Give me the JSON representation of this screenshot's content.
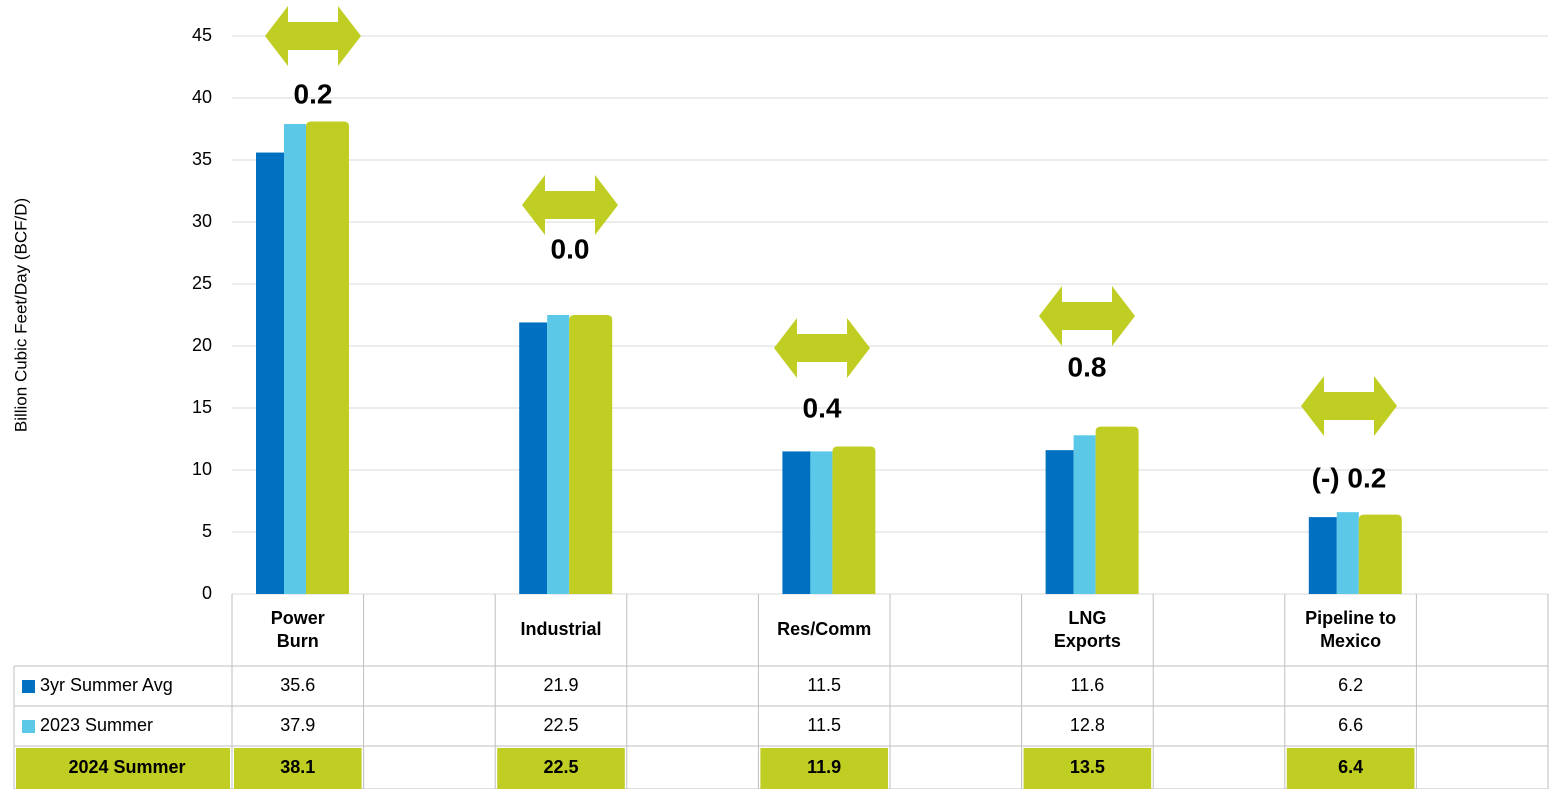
{
  "chart_data": {
    "type": "bar",
    "y_axis_label": "Billion Cubic Feet/Day (BCF/D)",
    "categories": [
      "Power\nBurn",
      "Industrial",
      "Res/Comm",
      "LNG\nExports",
      "Pipeline to\nMexico"
    ],
    "series": [
      {
        "name": "3yr Summer Avg",
        "color": "#0070c0",
        "values": [
          35.6,
          21.9,
          11.5,
          11.6,
          6.2
        ]
      },
      {
        "name": "2023 Summer",
        "color": "#5bc8e8",
        "values": [
          37.9,
          22.5,
          11.5,
          12.8,
          6.6
        ]
      },
      {
        "name": "2024 Summer",
        "color": "#c0cd22",
        "values": [
          38.1,
          22.5,
          11.9,
          13.5,
          6.4
        ]
      }
    ],
    "annotations": [
      "0.2",
      "0.0",
      "0.4",
      "0.8",
      "(-) 0.2"
    ],
    "ylim": [
      0,
      45
    ],
    "yticks": [
      0,
      5,
      10,
      15,
      20,
      25,
      30,
      35,
      40,
      45
    ],
    "grid": true
  }
}
